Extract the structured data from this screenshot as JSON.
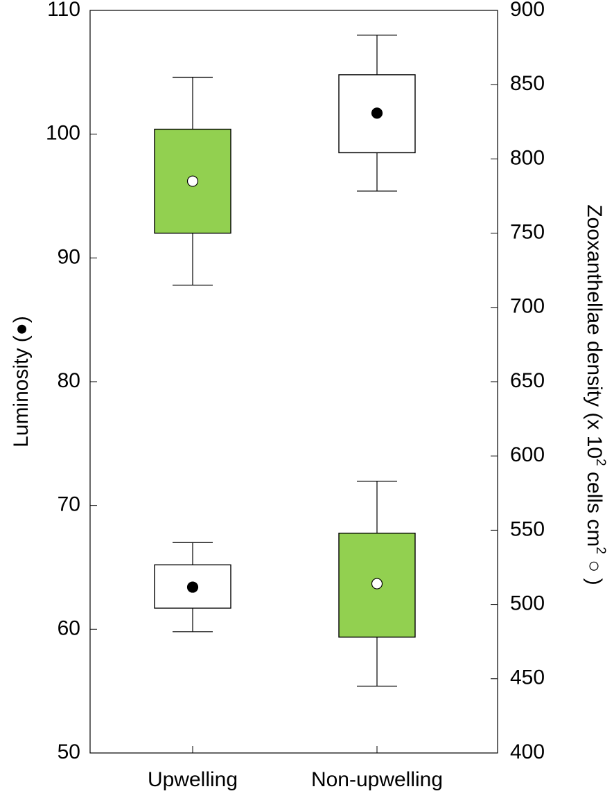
{
  "chart_data": {
    "type": "box",
    "categories": [
      "Upwelling",
      "Non-upwelling"
    ],
    "left_axis": {
      "label": "Luminosity",
      "marker": "filled-circle",
      "ylim": [
        50,
        110
      ],
      "ticks": [
        50,
        60,
        70,
        80,
        90,
        100,
        110
      ]
    },
    "right_axis": {
      "label_prefix": "Zooxanthellae density (x 10",
      "label_sup1": "2",
      "label_mid": " cells cm",
      "label_sup2": "2",
      "label_end": ")",
      "marker": "open-circle",
      "ylim": [
        400,
        900
      ],
      "ticks": [
        400,
        450,
        500,
        550,
        600,
        650,
        700,
        750,
        800,
        850,
        900
      ]
    },
    "series": [
      {
        "axis": "left",
        "marker": "filled",
        "fill": "#ffffff",
        "boxes": [
          {
            "category": "Upwelling",
            "whisker_low": 59.8,
            "q1": 61.7,
            "mean": 63.4,
            "q3": 65.2,
            "whisker_high": 67.0
          },
          {
            "category": "Non-upwelling",
            "whisker_low": 95.4,
            "q1": 98.5,
            "mean": 101.7,
            "q3": 104.8,
            "whisker_high": 108.0
          }
        ]
      },
      {
        "axis": "right",
        "marker": "open",
        "fill": "#92d050",
        "boxes": [
          {
            "category": "Upwelling",
            "whisker_low": 715,
            "q1": 750,
            "mean": 785,
            "q3": 820,
            "whisker_high": 855
          },
          {
            "category": "Non-upwelling",
            "whisker_low": 445,
            "q1": 478,
            "mean": 514,
            "q3": 548,
            "whisker_high": 583
          }
        ]
      }
    ],
    "grid": false,
    "legend": "none"
  }
}
